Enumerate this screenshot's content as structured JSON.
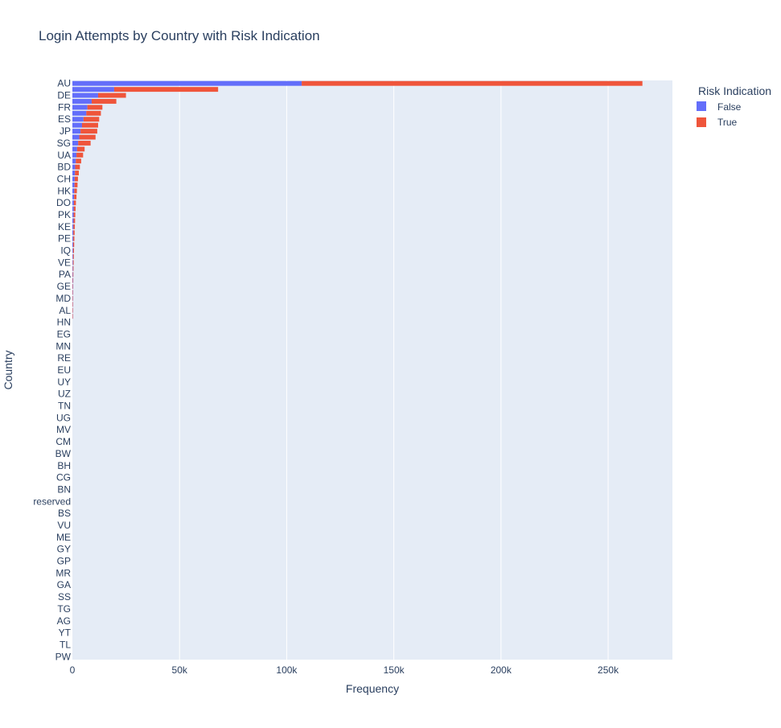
{
  "chart_data": {
    "type": "bar",
    "orientation": "horizontal",
    "barmode": "stack",
    "title": "Login Attempts by Country with Risk Indication",
    "xlabel": "Frequency",
    "ylabel": "Country",
    "xlim": [
      0,
      280000
    ],
    "x_ticks": [
      0,
      50000,
      100000,
      150000,
      200000,
      250000
    ],
    "x_tick_labels": [
      "0",
      "50k",
      "100k",
      "150k",
      "200k",
      "250k"
    ],
    "y_tick_labels": [
      "AU",
      "DE",
      "FR",
      "ES",
      "JP",
      "SG",
      "UA",
      "BD",
      "CH",
      "HK",
      "DO",
      "PK",
      "KE",
      "PE",
      "IQ",
      "VE",
      "PA",
      "GE",
      "MD",
      "AL",
      "HN",
      "EG",
      "MN",
      "RE",
      "EU",
      "UY",
      "UZ",
      "TN",
      "UG",
      "MV",
      "CM",
      "BW",
      "BH",
      "CG",
      "BN",
      "reserved",
      "BS",
      "VU",
      "ME",
      "GY",
      "GP",
      "MR",
      "GA",
      "SS",
      "TG",
      "AG",
      "YT",
      "TL",
      "PW"
    ],
    "category_count": 97,
    "grid": true,
    "legend": {
      "title": "Risk Indication",
      "position": "top-right"
    },
    "series": [
      {
        "name": "False",
        "color": "#636efa",
        "values": [
          107000,
          19500,
          12000,
          9000,
          7000,
          6500,
          5200,
          4500,
          3800,
          3200,
          2700,
          2200,
          1900,
          1600,
          1300,
          1200,
          1100,
          1000,
          900,
          800,
          700,
          650,
          600,
          550,
          500,
          450,
          400,
          360,
          320,
          290,
          260,
          230,
          200,
          180,
          160,
          140,
          120,
          100,
          90,
          80
        ]
      },
      {
        "name": "True",
        "color": "#ef553b",
        "values": [
          159000,
          48500,
          13000,
          11500,
          7000,
          6800,
          7300,
          7500,
          7800,
          7600,
          5800,
          3500,
          3100,
          2500,
          2200,
          1800,
          1500,
          1400,
          1200,
          1100,
          950,
          850,
          750,
          700,
          650,
          600,
          540,
          480,
          430,
          380,
          330,
          290,
          250,
          220,
          190,
          160,
          130,
          110,
          100,
          90
        ]
      }
    ]
  }
}
